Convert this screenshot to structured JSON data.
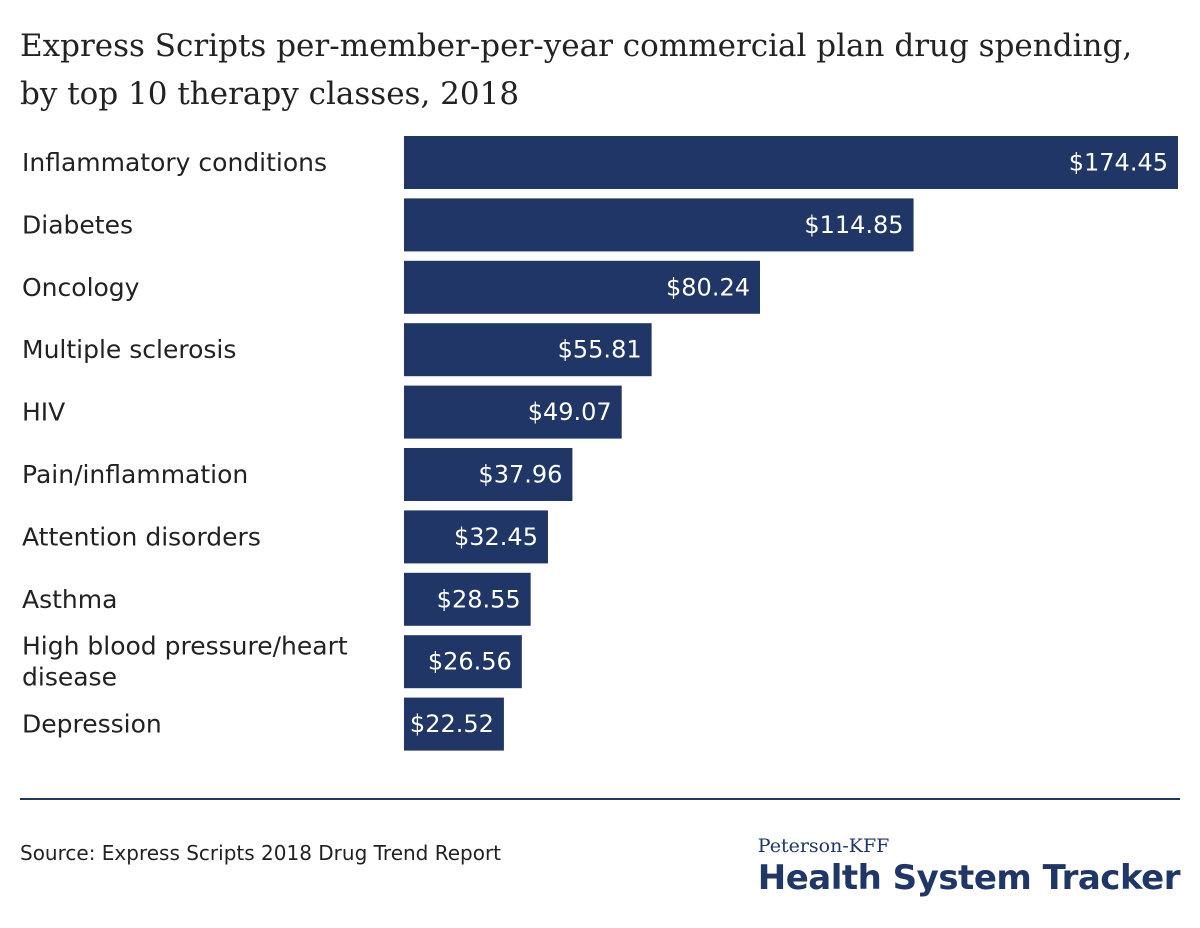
{
  "title": "Express Scripts per-member-per-year commercial plan drug spending, by top 10 therapy classes, 2018",
  "chart_data": {
    "type": "bar",
    "orientation": "horizontal",
    "categories": [
      "Inflammatory conditions",
      "Diabetes",
      "Oncology",
      "Multiple sclerosis",
      "HIV",
      "Pain/inflammation",
      "Attention disorders",
      "Asthma",
      "High blood pressure/heart disease",
      "Depression"
    ],
    "values": [
      174.45,
      114.85,
      80.24,
      55.81,
      49.07,
      37.96,
      32.45,
      28.55,
      26.56,
      22.52
    ],
    "value_labels": [
      "$174.45",
      "$114.85",
      "$80.24",
      "$55.81",
      "$49.07",
      "$37.96",
      "$32.45",
      "$28.55",
      "$26.56",
      "$22.52"
    ],
    "xlim": [
      0,
      174.45
    ],
    "grid": false,
    "bar_color": "#1f3666"
  },
  "source": "Source: Express Scripts 2018 Drug Trend Report",
  "branding": {
    "line1": "Peterson-KFF",
    "line2": "Health System Tracker",
    "color": "#1f3666"
  },
  "colors": {
    "divider": "#1f3666",
    "text": "#222222"
  }
}
